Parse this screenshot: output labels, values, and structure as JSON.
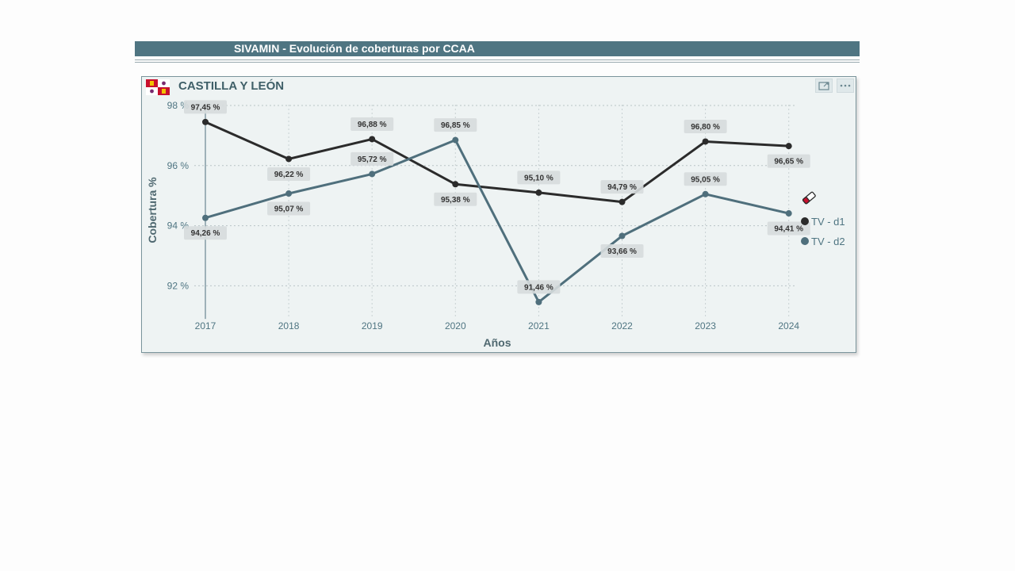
{
  "page": {
    "header_title": "SIVAMIN - Evolución de coberturas por CCAA",
    "card_title": "CASTILLA Y LEÓN",
    "focus_icon": "focus-mode-icon",
    "more_icon": "more-options-icon",
    "flag_icon": "castilla-leon-flag-icon"
  },
  "chart_data": {
    "type": "line",
    "title": "CASTILLA Y LEÓN",
    "xlabel": "Años",
    "ylabel": "Cobertura %",
    "categories": [
      "2017",
      "2018",
      "2019",
      "2020",
      "2021",
      "2022",
      "2023",
      "2024"
    ],
    "yticks": [
      92,
      94,
      96,
      98
    ],
    "ytick_labels": [
      "92 %",
      "94 %",
      "96 %",
      "98 %"
    ],
    "ylim": [
      90.9,
      98
    ],
    "grid": true,
    "legend_position": "right",
    "series": [
      {
        "name": "TV - d1",
        "color": "#2b2b2b",
        "values": [
          97.45,
          96.22,
          96.88,
          95.38,
          95.1,
          94.79,
          96.8,
          96.65
        ],
        "labels": [
          "97,45 %",
          "96,22 %",
          "96,88 %",
          "95,38 %",
          "95,10 %",
          "94,79 %",
          "96,80 %",
          "96,65 %"
        ]
      },
      {
        "name": "TV - d2",
        "color": "#4f6f7c",
        "values": [
          94.26,
          95.07,
          95.72,
          96.85,
          91.46,
          93.66,
          95.05,
          94.41
        ],
        "labels": [
          "94,26 %",
          "95,07 %",
          "95,72 %",
          "96,85 %",
          "91,46 %",
          "93,66 %",
          "95,05 %",
          "94,41 %"
        ]
      }
    ]
  }
}
